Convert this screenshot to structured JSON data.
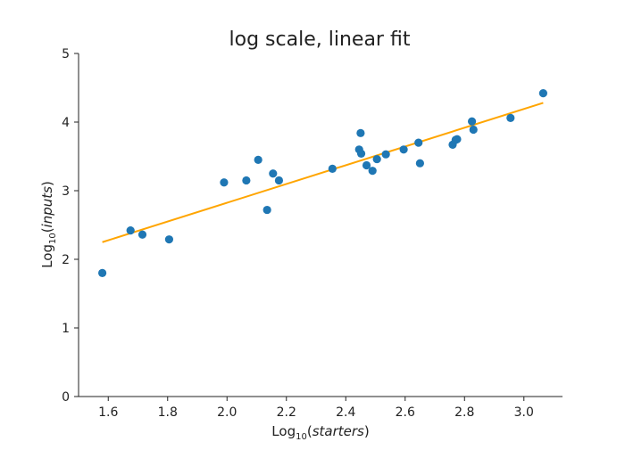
{
  "chart_data": {
    "type": "scatter",
    "title": "log scale, linear fit",
    "xlabel": {
      "prefix": "Log",
      "sub": "10",
      "open": "(",
      "var": "starters",
      "close": ")"
    },
    "ylabel": {
      "prefix": "Log",
      "sub": "10",
      "open": "(",
      "var": "inputs",
      "close": ")"
    },
    "xlim": [
      1.5,
      3.13
    ],
    "ylim": [
      0,
      5
    ],
    "xticks": [
      "1.6",
      "1.8",
      "2.0",
      "2.2",
      "2.4",
      "2.6",
      "2.8",
      "3.0"
    ],
    "yticks": [
      "0",
      "1",
      "2",
      "3",
      "4",
      "5"
    ],
    "grid": false,
    "points": {
      "color": "#1f77b4",
      "x": [
        1.58,
        1.675,
        1.715,
        1.805,
        1.99,
        2.065,
        2.105,
        2.135,
        2.155,
        2.175,
        2.355,
        2.445,
        2.45,
        2.452,
        2.47,
        2.49,
        2.505,
        2.535,
        2.595,
        2.645,
        2.65,
        2.76,
        2.77,
        2.775,
        2.825,
        2.83,
        2.955,
        3.065
      ],
      "y": [
        1.8,
        2.42,
        2.36,
        2.29,
        3.12,
        3.15,
        3.45,
        2.72,
        3.25,
        3.15,
        3.32,
        3.6,
        3.84,
        3.54,
        3.37,
        3.29,
        3.46,
        3.53,
        3.6,
        3.7,
        3.4,
        3.67,
        3.74,
        3.75,
        4.01,
        3.89,
        4.06,
        4.42
      ]
    },
    "fit_line": {
      "color": "#ffa500",
      "x": [
        1.58,
        3.065
      ],
      "y": [
        2.25,
        4.28
      ]
    }
  }
}
